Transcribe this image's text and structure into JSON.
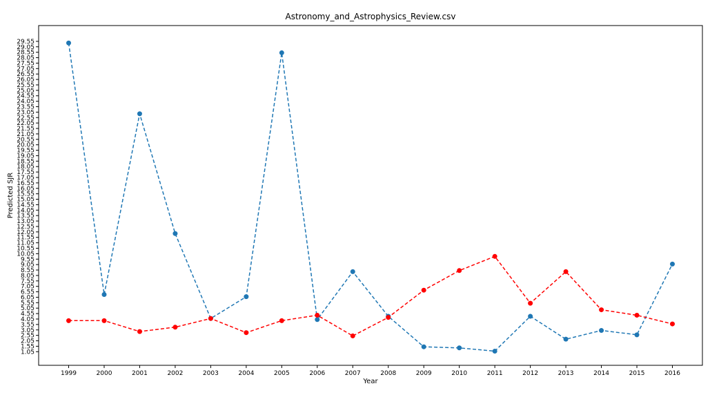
{
  "chart_data": {
    "type": "line",
    "title": "Astronomy_and_Astrophysics_Review.csv",
    "xlabel": "Year",
    "ylabel": "Predicted SJR",
    "categories": [
      "1999",
      "2000",
      "2001",
      "2002",
      "2003",
      "2004",
      "2005",
      "2006",
      "2007",
      "2008",
      "2009",
      "2010",
      "2011",
      "2012",
      "2013",
      "2014",
      "2015",
      "2016"
    ],
    "yticks": [
      "1.05",
      "1.55",
      "2.05",
      "2.55",
      "3.05",
      "3.55",
      "4.05",
      "4.55",
      "5.05",
      "5.55",
      "6.05",
      "6.55",
      "7.05",
      "7.55",
      "8.05",
      "8.55",
      "9.05",
      "9.55",
      "10.05",
      "10.55",
      "11.05",
      "11.55",
      "12.05",
      "12.55",
      "13.05",
      "13.55",
      "14.05",
      "14.55",
      "15.05",
      "15.55",
      "16.05",
      "16.55",
      "17.05",
      "17.55",
      "18.05",
      "18.55",
      "19.05",
      "19.55",
      "20.05",
      "20.55",
      "21.05",
      "21.55",
      "22.05",
      "22.55",
      "23.05",
      "23.55",
      "24.05",
      "24.55",
      "25.05",
      "25.55",
      "26.05",
      "26.55",
      "27.05",
      "27.55",
      "28.05",
      "28.55",
      "29.05",
      "29.55"
    ],
    "ylim": [
      -0.2,
      31.0
    ],
    "grid": false,
    "series": [
      {
        "color": "#1f77b4",
        "linestyle": "dashed",
        "marker": "circle",
        "values": [
          29.4,
          6.3,
          22.9,
          11.9,
          4.1,
          6.1,
          28.5,
          4.0,
          8.4,
          4.3,
          1.5,
          1.4,
          1.1,
          4.3,
          2.2,
          3.0,
          2.6,
          9.1
        ]
      },
      {
        "color": "#ff0000",
        "linestyle": "dashed",
        "marker": "circle",
        "values": [
          3.9,
          3.9,
          2.9,
          3.3,
          4.1,
          2.8,
          3.9,
          4.4,
          2.5,
          4.2,
          6.7,
          8.5,
          9.8,
          5.5,
          8.4,
          4.9,
          4.4,
          3.6
        ]
      }
    ]
  }
}
